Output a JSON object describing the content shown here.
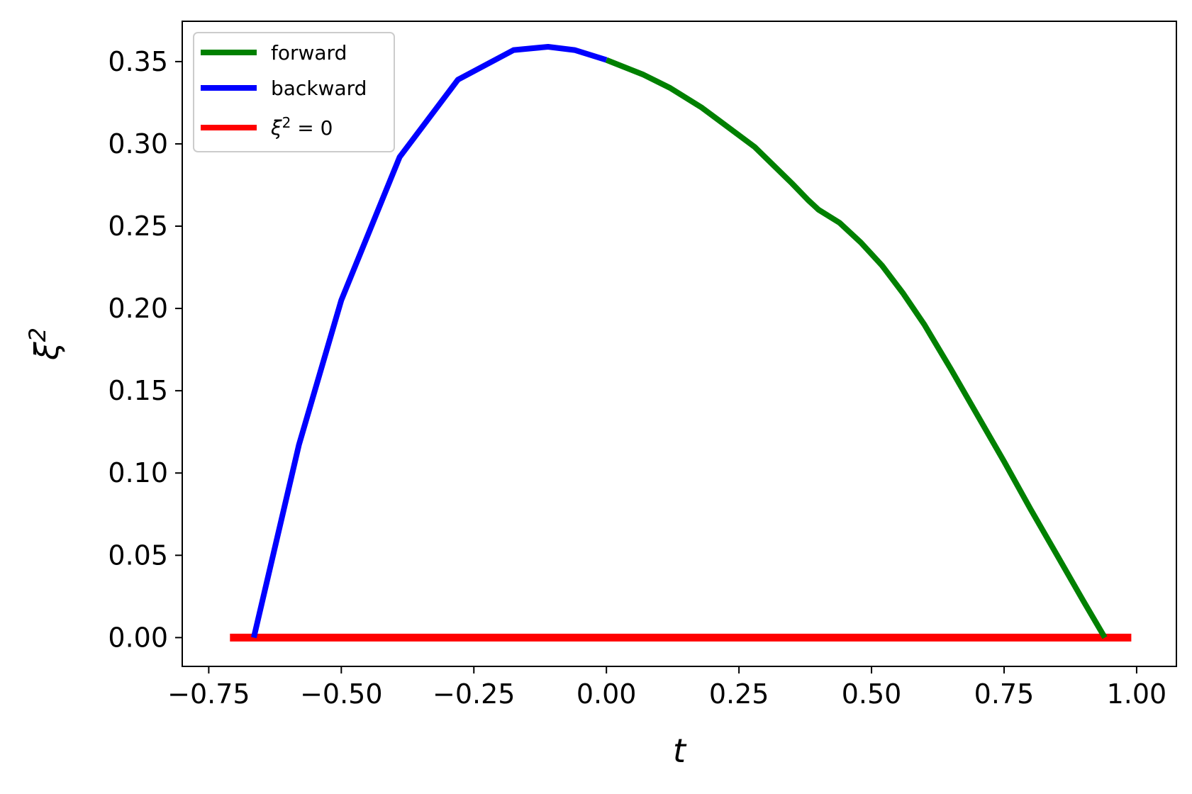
{
  "chart_data": {
    "type": "line",
    "xlabel": "t",
    "ylabel": {
      "base": "ξ",
      "sup": "2"
    },
    "xlim": [
      -0.8,
      1.075
    ],
    "ylim": [
      -0.0175,
      0.3745
    ],
    "xticks": [
      -0.75,
      -0.5,
      -0.25,
      0.0,
      0.25,
      0.5,
      0.75,
      1.0
    ],
    "xtick_labels": [
      "−0.75",
      "−0.50",
      "−0.25",
      "0.00",
      "0.25",
      "0.50",
      "0.75",
      "1.00"
    ],
    "yticks": [
      0.0,
      0.05,
      0.1,
      0.15,
      0.2,
      0.25,
      0.3,
      0.35
    ],
    "ytick_labels": [
      "0.00",
      "0.05",
      "0.10",
      "0.15",
      "0.20",
      "0.25",
      "0.30",
      "0.35"
    ],
    "grid": false,
    "legend_position": "top-left",
    "series": [
      {
        "name": "forward",
        "color": "#008000",
        "points": [
          [
            0.0,
            0.351
          ],
          [
            0.07,
            0.342
          ],
          [
            0.12,
            0.334
          ],
          [
            0.18,
            0.322
          ],
          [
            0.28,
            0.298
          ],
          [
            0.35,
            0.276
          ],
          [
            0.38,
            0.266
          ],
          [
            0.4,
            0.26
          ],
          [
            0.44,
            0.252
          ],
          [
            0.48,
            0.24
          ],
          [
            0.52,
            0.226
          ],
          [
            0.56,
            0.209
          ],
          [
            0.6,
            0.19
          ],
          [
            0.65,
            0.163
          ],
          [
            0.7,
            0.135
          ],
          [
            0.75,
            0.107
          ],
          [
            0.8,
            0.078
          ],
          [
            0.85,
            0.05
          ],
          [
            0.9,
            0.022
          ],
          [
            0.94,
            0.0
          ]
        ]
      },
      {
        "name": "backward",
        "color": "#0000ff",
        "points": [
          [
            -0.665,
            0.0
          ],
          [
            -0.58,
            0.117
          ],
          [
            -0.5,
            0.205
          ],
          [
            -0.39,
            0.292
          ],
          [
            -0.28,
            0.339
          ],
          [
            -0.175,
            0.357
          ],
          [
            -0.11,
            0.359
          ],
          [
            -0.06,
            0.357
          ],
          [
            -0.03,
            0.354
          ],
          [
            0.0,
            0.351
          ]
        ]
      },
      {
        "name": "ξ² = 0",
        "legend_label": {
          "base": "ξ",
          "sup": "2",
          "rest": " = 0"
        },
        "color": "#ff0000",
        "points": [
          [
            -0.71,
            0.0
          ],
          [
            0.99,
            0.0
          ]
        ]
      }
    ]
  }
}
